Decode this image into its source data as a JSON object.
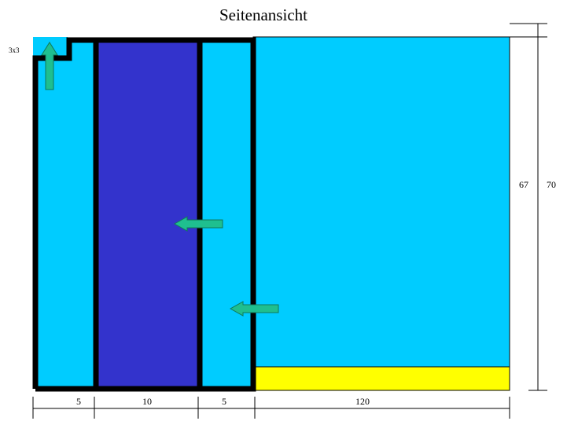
{
  "title": "Seitenansicht",
  "corner_label": "3x3",
  "dimensions": {
    "bottom": [
      "5",
      "10",
      "5",
      "120"
    ],
    "right_inner": "67",
    "right_outer": "70"
  },
  "colors": {
    "water": "#00CCFF",
    "inner_chamber": "#3333CC",
    "sand": "#FFFF00",
    "wall": "#000000",
    "arrow": "#1FBF8F"
  },
  "icons": [
    "arrow-up-icon",
    "arrow-left-icon",
    "arrow-left-icon"
  ]
}
